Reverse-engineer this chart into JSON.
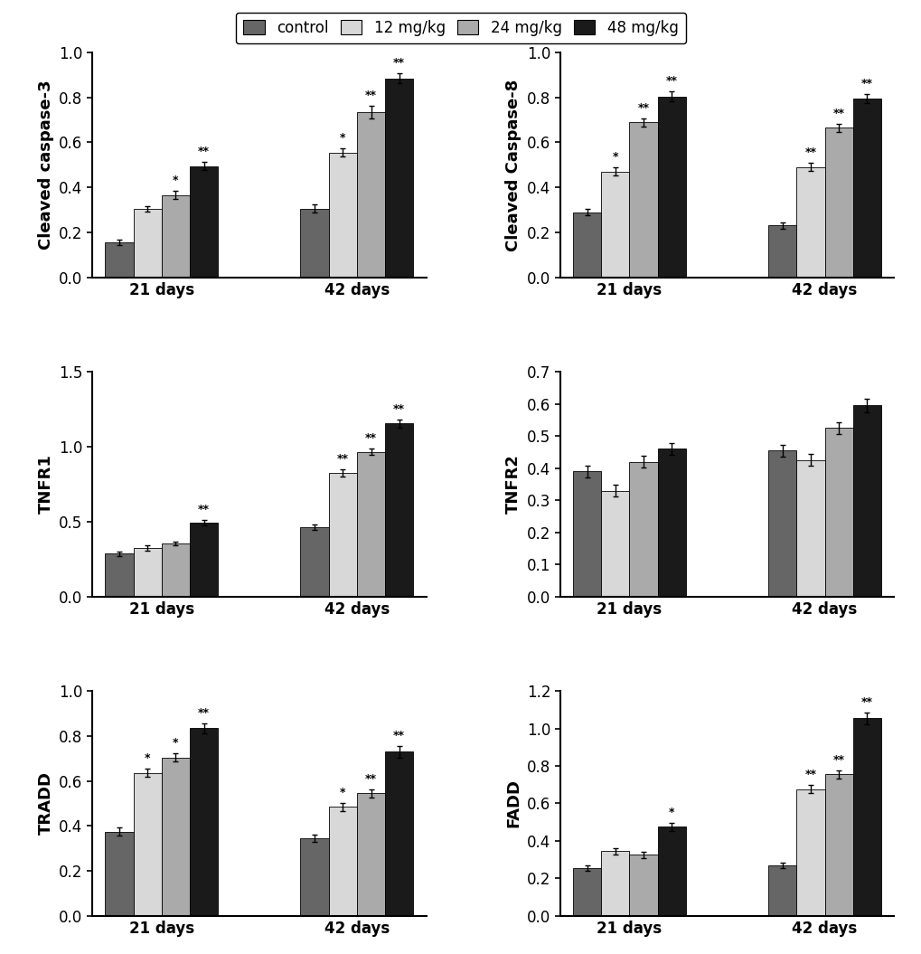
{
  "panels": [
    {
      "ylabel": "Cleaved caspase-3",
      "ylim": [
        0,
        1.0
      ],
      "yticks": [
        0,
        0.2,
        0.4,
        0.6,
        0.8,
        1.0
      ],
      "groups": [
        "21 days",
        "42 days"
      ],
      "values": [
        [
          0.155,
          0.305,
          0.365,
          0.495
        ],
        [
          0.305,
          0.555,
          0.735,
          0.885
        ]
      ],
      "errors": [
        [
          0.012,
          0.013,
          0.018,
          0.018
        ],
        [
          0.018,
          0.018,
          0.028,
          0.022
        ]
      ],
      "stars": [
        [
          "",
          "",
          "*",
          "**"
        ],
        [
          "",
          "*",
          "**",
          "**"
        ]
      ]
    },
    {
      "ylabel": "Cleaved Caspase-8",
      "ylim": [
        0,
        1.0
      ],
      "yticks": [
        0,
        0.2,
        0.4,
        0.6,
        0.8,
        1.0
      ],
      "groups": [
        "21 days",
        "42 days"
      ],
      "values": [
        [
          0.29,
          0.47,
          0.69,
          0.805
        ],
        [
          0.23,
          0.49,
          0.665,
          0.795
        ]
      ],
      "errors": [
        [
          0.013,
          0.018,
          0.018,
          0.022
        ],
        [
          0.013,
          0.018,
          0.018,
          0.022
        ]
      ],
      "stars": [
        [
          "",
          "*",
          "**",
          "**"
        ],
        [
          "",
          "**",
          "**",
          "**"
        ]
      ]
    },
    {
      "ylabel": "TNFR1",
      "ylim": [
        0,
        1.5
      ],
      "yticks": [
        0,
        0.5,
        1.0,
        1.5
      ],
      "groups": [
        "21 days",
        "42 days"
      ],
      "values": [
        [
          0.285,
          0.325,
          0.355,
          0.495
        ],
        [
          0.465,
          0.825,
          0.965,
          1.155
        ]
      ],
      "errors": [
        [
          0.013,
          0.018,
          0.013,
          0.018
        ],
        [
          0.018,
          0.022,
          0.022,
          0.028
        ]
      ],
      "stars": [
        [
          "",
          "",
          "",
          "**"
        ],
        [
          "",
          "**",
          "**",
          "**"
        ]
      ]
    },
    {
      "ylabel": "TNFR2",
      "ylim": [
        0,
        0.7
      ],
      "yticks": [
        0,
        0.1,
        0.2,
        0.3,
        0.4,
        0.5,
        0.6,
        0.7
      ],
      "groups": [
        "21 days",
        "42 days"
      ],
      "values": [
        [
          0.39,
          0.33,
          0.42,
          0.46
        ],
        [
          0.455,
          0.425,
          0.525,
          0.595
        ]
      ],
      "errors": [
        [
          0.018,
          0.018,
          0.018,
          0.018
        ],
        [
          0.018,
          0.018,
          0.018,
          0.022
        ]
      ],
      "stars": [
        [
          "",
          "",
          "",
          ""
        ],
        [
          "",
          "",
          "",
          ""
        ]
      ]
    },
    {
      "ylabel": "TRADD",
      "ylim": [
        0,
        1.0
      ],
      "yticks": [
        0,
        0.2,
        0.4,
        0.6,
        0.8,
        1.0
      ],
      "groups": [
        "21 days",
        "42 days"
      ],
      "values": [
        [
          0.375,
          0.635,
          0.705,
          0.835
        ],
        [
          0.345,
          0.485,
          0.545,
          0.73
        ]
      ],
      "errors": [
        [
          0.018,
          0.018,
          0.018,
          0.022
        ],
        [
          0.015,
          0.018,
          0.018,
          0.025
        ]
      ],
      "stars": [
        [
          "",
          "*",
          "*",
          "**"
        ],
        [
          "",
          "*",
          "**",
          "**"
        ]
      ]
    },
    {
      "ylabel": "FADD",
      "ylim": [
        0,
        1.2
      ],
      "yticks": [
        0,
        0.2,
        0.4,
        0.6,
        0.8,
        1.0,
        1.2
      ],
      "groups": [
        "21 days",
        "42 days"
      ],
      "values": [
        [
          0.255,
          0.345,
          0.325,
          0.475
        ],
        [
          0.27,
          0.675,
          0.755,
          1.055
        ]
      ],
      "errors": [
        [
          0.013,
          0.018,
          0.018,
          0.022
        ],
        [
          0.013,
          0.022,
          0.022,
          0.032
        ]
      ],
      "stars": [
        [
          "",
          "",
          "",
          "*"
        ],
        [
          "",
          "**",
          "**",
          "**"
        ]
      ]
    }
  ],
  "bar_colors": [
    "#666666",
    "#d8d8d8",
    "#aaaaaa",
    "#1a1a1a"
  ],
  "legend_labels": [
    "control",
    "12 mg/kg",
    "24 mg/kg",
    "48 mg/kg"
  ],
  "bar_width": 0.13,
  "background_color": "#ffffff",
  "label_fontsize": 13,
  "tick_fontsize": 12,
  "star_fontsize": 9
}
